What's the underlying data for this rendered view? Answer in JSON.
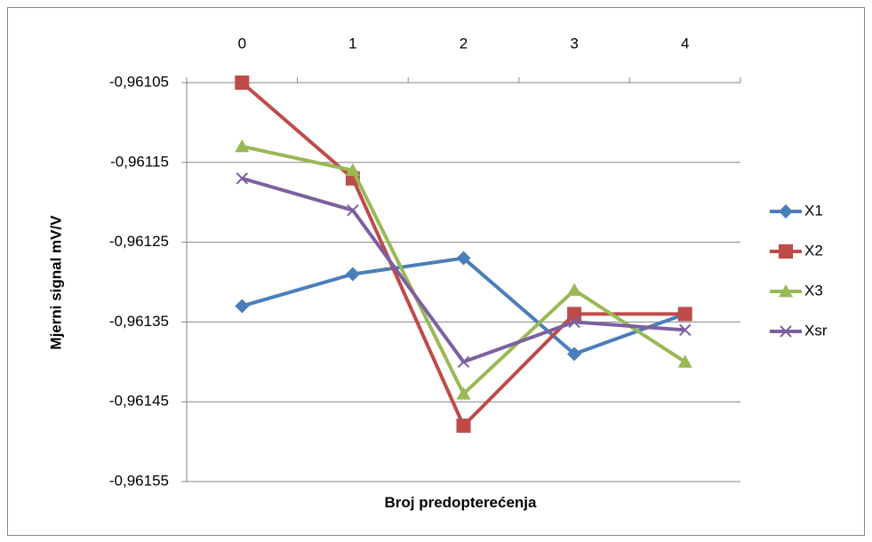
{
  "chart_data": {
    "type": "line",
    "x_label": "Broj predopterećenja",
    "y_label": "Mjerni signal mV/V",
    "categories": [
      "0",
      "1",
      "2",
      "3",
      "4"
    ],
    "series": [
      {
        "name": "X1",
        "color": "#4a7ebb",
        "marker": "diamond",
        "values": [
          -0.96133,
          -0.96129,
          -0.96127,
          -0.96139,
          -0.96134
        ]
      },
      {
        "name": "X2",
        "color": "#be4b48",
        "marker": "square",
        "values": [
          -0.96105,
          -0.96117,
          -0.96148,
          -0.96134,
          -0.96134
        ]
      },
      {
        "name": "X3",
        "color": "#98b954",
        "marker": "triangle",
        "values": [
          -0.96113,
          -0.96116,
          -0.96144,
          -0.96131,
          -0.9614
        ]
      },
      {
        "name": "Xsr",
        "color": "#7d60a0",
        "marker": "x",
        "values": [
          -0.96117,
          -0.96121,
          -0.9614,
          -0.96135,
          -0.96136
        ]
      }
    ],
    "ylim": [
      -0.96155,
      -0.96105
    ],
    "yticks": [
      {
        "value": -0.96155,
        "label": "-0,96155"
      },
      {
        "value": -0.96145,
        "label": "-0,96145"
      },
      {
        "value": -0.96135,
        "label": "-0,96135"
      },
      {
        "value": -0.96125,
        "label": "-0,96125"
      },
      {
        "value": -0.96115,
        "label": "-0,96115"
      },
      {
        "value": -0.96105,
        "label": "-0,96105"
      }
    ],
    "grid": true,
    "legend": "right"
  }
}
